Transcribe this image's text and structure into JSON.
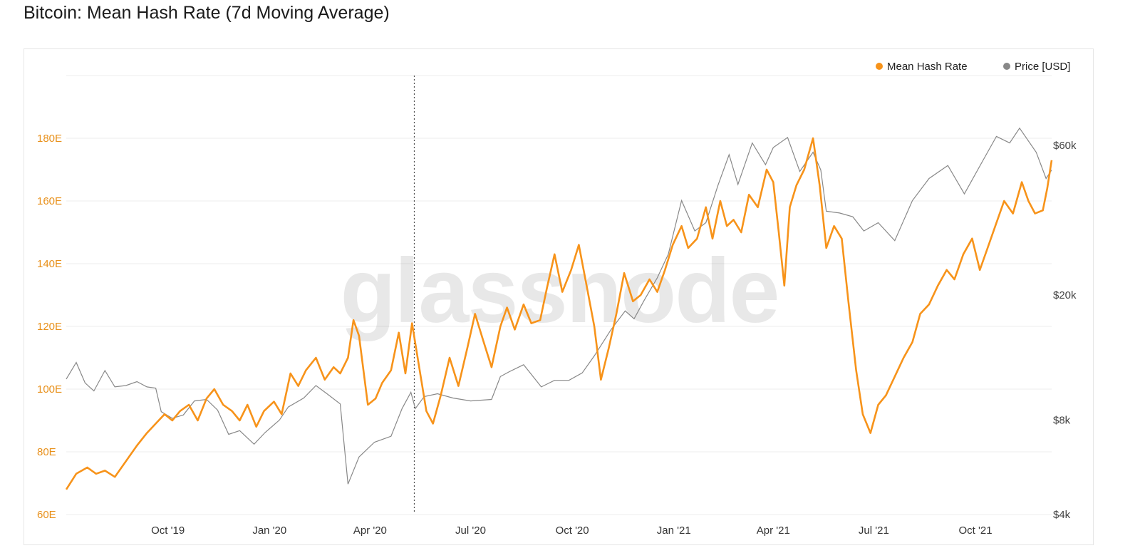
{
  "title": "Bitcoin: Mean Hash Rate (7d Moving Average)",
  "watermark": "glassnode",
  "colors": {
    "hash_rate": "#f7931a",
    "price": "#888888",
    "grid": "#eeeeee"
  },
  "chart_data": {
    "type": "line",
    "title": "Bitcoin: Mean Hash Rate (7d Moving Average)",
    "legend_position": "top-right",
    "grid": true,
    "x_range": [
      "2019-07-01",
      "2021-12-09"
    ],
    "x_ticks": [
      {
        "date": "2019-10-01",
        "label": "Oct '19"
      },
      {
        "date": "2020-01-01",
        "label": "Jan '20"
      },
      {
        "date": "2020-04-01",
        "label": "Apr '20"
      },
      {
        "date": "2020-07-01",
        "label": "Jul '20"
      },
      {
        "date": "2020-10-01",
        "label": "Oct '20"
      },
      {
        "date": "2021-01-01",
        "label": "Jan '21"
      },
      {
        "date": "2021-04-01",
        "label": "Apr '21"
      },
      {
        "date": "2021-07-01",
        "label": "Jul '21"
      },
      {
        "date": "2021-10-01",
        "label": "Oct '21"
      }
    ],
    "marker_date": "2020-05-11",
    "y_left": {
      "unit": "EH/s",
      "range": [
        60,
        200
      ],
      "ticks": [
        {
          "value": 60,
          "label": "60E"
        },
        {
          "value": 80,
          "label": "80E"
        },
        {
          "value": 100,
          "label": "100E"
        },
        {
          "value": 120,
          "label": "120E"
        },
        {
          "value": 140,
          "label": "140E"
        },
        {
          "value": 160,
          "label": "160E"
        },
        {
          "value": 180,
          "label": "180E"
        }
      ]
    },
    "y_right": {
      "scale": "log",
      "range": [
        4000,
        100000
      ],
      "ticks": [
        {
          "value": 4000,
          "label": "$4k"
        },
        {
          "value": 8000,
          "label": "$8k"
        },
        {
          "value": 20000,
          "label": "$20k"
        },
        {
          "value": 60000,
          "label": "$60k"
        }
      ]
    },
    "series": [
      {
        "name": "Mean Hash Rate",
        "axis": "left",
        "color": "#f7931a",
        "points": [
          [
            "2019-07-01",
            68
          ],
          [
            "2019-07-10",
            73
          ],
          [
            "2019-07-20",
            75
          ],
          [
            "2019-07-28",
            73
          ],
          [
            "2019-08-05",
            74
          ],
          [
            "2019-08-14",
            72
          ],
          [
            "2019-08-24",
            77
          ],
          [
            "2019-09-03",
            82
          ],
          [
            "2019-09-12",
            86
          ],
          [
            "2019-09-20",
            89
          ],
          [
            "2019-09-28",
            92
          ],
          [
            "2019-10-05",
            90
          ],
          [
            "2019-10-12",
            93
          ],
          [
            "2019-10-20",
            95
          ],
          [
            "2019-10-28",
            90
          ],
          [
            "2019-11-05",
            97
          ],
          [
            "2019-11-12",
            100
          ],
          [
            "2019-11-20",
            95
          ],
          [
            "2019-11-28",
            93
          ],
          [
            "2019-12-05",
            90
          ],
          [
            "2019-12-12",
            95
          ],
          [
            "2019-12-20",
            88
          ],
          [
            "2019-12-27",
            93
          ],
          [
            "2020-01-05",
            96
          ],
          [
            "2020-01-12",
            92
          ],
          [
            "2020-01-20",
            105
          ],
          [
            "2020-01-27",
            101
          ],
          [
            "2020-02-03",
            106
          ],
          [
            "2020-02-12",
            110
          ],
          [
            "2020-02-20",
            103
          ],
          [
            "2020-02-28",
            107
          ],
          [
            "2020-03-05",
            105
          ],
          [
            "2020-03-12",
            110
          ],
          [
            "2020-03-17",
            122
          ],
          [
            "2020-03-22",
            117
          ],
          [
            "2020-03-30",
            95
          ],
          [
            "2020-04-06",
            97
          ],
          [
            "2020-04-12",
            102
          ],
          [
            "2020-04-20",
            106
          ],
          [
            "2020-04-27",
            118
          ],
          [
            "2020-05-03",
            105
          ],
          [
            "2020-05-09",
            121
          ],
          [
            "2020-05-15",
            108
          ],
          [
            "2020-05-22",
            93
          ],
          [
            "2020-05-28",
            89
          ],
          [
            "2020-06-04",
            98
          ],
          [
            "2020-06-12",
            110
          ],
          [
            "2020-06-20",
            101
          ],
          [
            "2020-06-28",
            113
          ],
          [
            "2020-07-05",
            124
          ],
          [
            "2020-07-12",
            116
          ],
          [
            "2020-07-20",
            107
          ],
          [
            "2020-07-28",
            120
          ],
          [
            "2020-08-03",
            126
          ],
          [
            "2020-08-10",
            119
          ],
          [
            "2020-08-18",
            127
          ],
          [
            "2020-08-25",
            121
          ],
          [
            "2020-09-02",
            122
          ],
          [
            "2020-09-08",
            132
          ],
          [
            "2020-09-15",
            143
          ],
          [
            "2020-09-22",
            131
          ],
          [
            "2020-09-30",
            138
          ],
          [
            "2020-10-07",
            146
          ],
          [
            "2020-10-14",
            133
          ],
          [
            "2020-10-21",
            120
          ],
          [
            "2020-10-27",
            103
          ],
          [
            "2020-11-03",
            113
          ],
          [
            "2020-11-10",
            124
          ],
          [
            "2020-11-17",
            137
          ],
          [
            "2020-11-25",
            128
          ],
          [
            "2020-12-02",
            130
          ],
          [
            "2020-12-10",
            135
          ],
          [
            "2020-12-17",
            131
          ],
          [
            "2020-12-24",
            138
          ],
          [
            "2020-12-31",
            146
          ],
          [
            "2021-01-08",
            152
          ],
          [
            "2021-01-14",
            145
          ],
          [
            "2021-01-22",
            148
          ],
          [
            "2021-01-30",
            158
          ],
          [
            "2021-02-05",
            148
          ],
          [
            "2021-02-12",
            160
          ],
          [
            "2021-02-18",
            152
          ],
          [
            "2021-02-24",
            154
          ],
          [
            "2021-03-03",
            150
          ],
          [
            "2021-03-10",
            162
          ],
          [
            "2021-03-18",
            158
          ],
          [
            "2021-03-26",
            170
          ],
          [
            "2021-04-01",
            166
          ],
          [
            "2021-04-06",
            150
          ],
          [
            "2021-04-11",
            133
          ],
          [
            "2021-04-16",
            158
          ],
          [
            "2021-04-22",
            165
          ],
          [
            "2021-04-29",
            170
          ],
          [
            "2021-05-07",
            180
          ],
          [
            "2021-05-13",
            165
          ],
          [
            "2021-05-19",
            145
          ],
          [
            "2021-05-26",
            152
          ],
          [
            "2021-06-02",
            148
          ],
          [
            "2021-06-08",
            128
          ],
          [
            "2021-06-15",
            106
          ],
          [
            "2021-06-21",
            92
          ],
          [
            "2021-06-28",
            86
          ],
          [
            "2021-07-05",
            95
          ],
          [
            "2021-07-12",
            98
          ],
          [
            "2021-07-20",
            104
          ],
          [
            "2021-07-28",
            110
          ],
          [
            "2021-08-05",
            115
          ],
          [
            "2021-08-12",
            124
          ],
          [
            "2021-08-20",
            127
          ],
          [
            "2021-08-28",
            133
          ],
          [
            "2021-09-05",
            138
          ],
          [
            "2021-09-12",
            135
          ],
          [
            "2021-09-20",
            143
          ],
          [
            "2021-09-28",
            148
          ],
          [
            "2021-10-05",
            138
          ],
          [
            "2021-10-12",
            145
          ],
          [
            "2021-10-19",
            152
          ],
          [
            "2021-10-27",
            160
          ],
          [
            "2021-11-04",
            156
          ],
          [
            "2021-11-12",
            166
          ],
          [
            "2021-11-18",
            160
          ],
          [
            "2021-11-24",
            156
          ],
          [
            "2021-12-01",
            157
          ],
          [
            "2021-12-05",
            164
          ],
          [
            "2021-12-09",
            173
          ]
        ]
      },
      {
        "name": "Price [USD]",
        "axis": "right",
        "color": "#888888",
        "points": [
          [
            "2019-07-01",
            10800
          ],
          [
            "2019-07-10",
            12200
          ],
          [
            "2019-07-18",
            10500
          ],
          [
            "2019-07-26",
            9900
          ],
          [
            "2019-08-05",
            11500
          ],
          [
            "2019-08-14",
            10200
          ],
          [
            "2019-08-24",
            10300
          ],
          [
            "2019-09-03",
            10600
          ],
          [
            "2019-09-12",
            10200
          ],
          [
            "2019-09-20",
            10100
          ],
          [
            "2019-09-25",
            8500
          ],
          [
            "2019-10-05",
            8100
          ],
          [
            "2019-10-15",
            8300
          ],
          [
            "2019-10-25",
            9200
          ],
          [
            "2019-11-05",
            9300
          ],
          [
            "2019-11-15",
            8600
          ],
          [
            "2019-11-25",
            7200
          ],
          [
            "2019-12-05",
            7400
          ],
          [
            "2019-12-18",
            6700
          ],
          [
            "2019-12-28",
            7300
          ],
          [
            "2020-01-10",
            8000
          ],
          [
            "2020-01-18",
            8800
          ],
          [
            "2020-02-01",
            9400
          ],
          [
            "2020-02-12",
            10300
          ],
          [
            "2020-02-22",
            9700
          ],
          [
            "2020-03-05",
            9000
          ],
          [
            "2020-03-12",
            5000
          ],
          [
            "2020-03-22",
            6100
          ],
          [
            "2020-04-05",
            6800
          ],
          [
            "2020-04-20",
            7100
          ],
          [
            "2020-04-30",
            8700
          ],
          [
            "2020-05-08",
            9800
          ],
          [
            "2020-05-12",
            8700
          ],
          [
            "2020-05-20",
            9500
          ],
          [
            "2020-06-01",
            9700
          ],
          [
            "2020-06-15",
            9400
          ],
          [
            "2020-07-01",
            9200
          ],
          [
            "2020-07-20",
            9300
          ],
          [
            "2020-07-28",
            11000
          ],
          [
            "2020-08-05",
            11400
          ],
          [
            "2020-08-18",
            12000
          ],
          [
            "2020-09-03",
            10200
          ],
          [
            "2020-09-15",
            10700
          ],
          [
            "2020-09-28",
            10700
          ],
          [
            "2020-10-10",
            11300
          ],
          [
            "2020-10-21",
            12800
          ],
          [
            "2020-11-05",
            15500
          ],
          [
            "2020-11-18",
            17800
          ],
          [
            "2020-11-26",
            16800
          ],
          [
            "2020-12-05",
            19200
          ],
          [
            "2020-12-17",
            22700
          ],
          [
            "2020-12-27",
            27000
          ],
          [
            "2021-01-08",
            40000
          ],
          [
            "2021-01-20",
            32000
          ],
          [
            "2021-01-30",
            34000
          ],
          [
            "2021-02-10",
            44800
          ],
          [
            "2021-02-20",
            56000
          ],
          [
            "2021-02-28",
            45000
          ],
          [
            "2021-03-13",
            61000
          ],
          [
            "2021-03-25",
            52000
          ],
          [
            "2021-04-01",
            59000
          ],
          [
            "2021-04-14",
            63500
          ],
          [
            "2021-04-25",
            49500
          ],
          [
            "2021-05-07",
            57000
          ],
          [
            "2021-05-14",
            50000
          ],
          [
            "2021-05-19",
            37000
          ],
          [
            "2021-05-31",
            36500
          ],
          [
            "2021-06-12",
            35500
          ],
          [
            "2021-06-22",
            32000
          ],
          [
            "2021-07-05",
            34000
          ],
          [
            "2021-07-20",
            29800
          ],
          [
            "2021-08-05",
            40000
          ],
          [
            "2021-08-20",
            47000
          ],
          [
            "2021-09-06",
            51700
          ],
          [
            "2021-09-21",
            42000
          ],
          [
            "2021-10-05",
            51500
          ],
          [
            "2021-10-20",
            64000
          ],
          [
            "2021-11-01",
            61000
          ],
          [
            "2021-11-10",
            68000
          ],
          [
            "2021-11-25",
            57000
          ],
          [
            "2021-12-04",
            47000
          ],
          [
            "2021-12-09",
            50000
          ]
        ]
      }
    ]
  }
}
